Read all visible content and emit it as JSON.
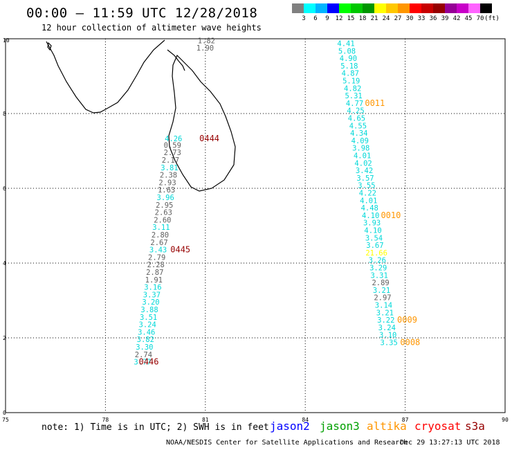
{
  "title": "00:00 – 11:59 UTC 12/28/2018",
  "subtitle": "12 hour collection of altimeter wave heights",
  "scale": {
    "colors": [
      "#808080",
      "#00ffff",
      "#00b4ff",
      "#0000ff",
      "#00ff00",
      "#00c800",
      "#009600",
      "#ffff00",
      "#ffc800",
      "#ff9600",
      "#ff0000",
      "#c80000",
      "#960000",
      "#960096",
      "#c800c8",
      "#ff64ff",
      "#000000"
    ],
    "labels": [
      "3",
      "6",
      "9",
      "12",
      "15",
      "18",
      "21",
      "24",
      "27",
      "30",
      "33",
      "36",
      "39",
      "42",
      "45",
      "70",
      "(ft)"
    ]
  },
  "axes": {
    "x_ticks": [
      "75",
      "78",
      "81",
      "84",
      "87",
      "90"
    ],
    "y_ticks": [
      "0",
      "2",
      "4",
      "6",
      "8",
      "10"
    ]
  },
  "note": "note: 1) Time is in UTC; 2) SWH is in feet",
  "satellites": [
    {
      "name": "jason2",
      "color": "#0000ff"
    },
    {
      "name": "jason3",
      "color": "#00a000"
    },
    {
      "name": "altika",
      "color": "#ff9600"
    },
    {
      "name": "cryosat",
      "color": "#ff0000"
    },
    {
      "name": "s3a",
      "color": "#960000"
    }
  ],
  "footer": "NOAA/NESDIS Center for Satellite Applications and Research",
  "footer_time": "Dec 29 13:27:13 UTC 2018",
  "colors": {
    "cyan": "#00d8d8",
    "gray": "#606060",
    "orange": "#ff9600",
    "yellow": "#ffff00",
    "darkred": "#960000"
  },
  "track_labels": [
    {
      "text": "1.82",
      "lon": 80.77,
      "lat": 9.95,
      "c": "gray"
    },
    {
      "text": "1.90",
      "lon": 80.73,
      "lat": 9.76,
      "c": "gray"
    },
    {
      "text": "4.26",
      "lon": 79.78,
      "lat": 7.33,
      "c": "cyan"
    },
    {
      "text": "0.59",
      "lon": 79.75,
      "lat": 7.16,
      "c": "gray"
    },
    {
      "text": "2.73",
      "lon": 79.75,
      "lat": 6.96,
      "c": "gray"
    },
    {
      "text": "2.17",
      "lon": 79.69,
      "lat": 6.76,
      "c": "gray"
    },
    {
      "text": "3.81",
      "lon": 79.66,
      "lat": 6.56,
      "c": "cyan"
    },
    {
      "text": "2.38",
      "lon": 79.63,
      "lat": 6.36,
      "c": "gray"
    },
    {
      "text": "2.93",
      "lon": 79.6,
      "lat": 6.16,
      "c": "gray"
    },
    {
      "text": "1.63",
      "lon": 79.57,
      "lat": 5.96,
      "c": "gray"
    },
    {
      "text": "3.96",
      "lon": 79.54,
      "lat": 5.76,
      "c": "cyan"
    },
    {
      "text": "2.95",
      "lon": 79.51,
      "lat": 5.56,
      "c": "gray"
    },
    {
      "text": "2.63",
      "lon": 79.48,
      "lat": 5.36,
      "c": "gray"
    },
    {
      "text": "2.60",
      "lon": 79.45,
      "lat": 5.16,
      "c": "gray"
    },
    {
      "text": "3.11",
      "lon": 79.41,
      "lat": 4.96,
      "c": "cyan"
    },
    {
      "text": "2.80",
      "lon": 79.38,
      "lat": 4.76,
      "c": "gray"
    },
    {
      "text": "2.67",
      "lon": 79.35,
      "lat": 4.56,
      "c": "gray"
    },
    {
      "text": "3.43",
      "lon": 79.32,
      "lat": 4.36,
      "c": "cyan"
    },
    {
      "text": "2.79",
      "lon": 79.28,
      "lat": 4.16,
      "c": "gray"
    },
    {
      "text": "2.28",
      "lon": 79.25,
      "lat": 3.96,
      "c": "gray"
    },
    {
      "text": "2.87",
      "lon": 79.22,
      "lat": 3.76,
      "c": "gray"
    },
    {
      "text": "1.91",
      "lon": 79.19,
      "lat": 3.56,
      "c": "gray"
    },
    {
      "text": "3.16",
      "lon": 79.16,
      "lat": 3.36,
      "c": "cyan"
    },
    {
      "text": "3.37",
      "lon": 79.13,
      "lat": 3.16,
      "c": "cyan"
    },
    {
      "text": "3.20",
      "lon": 79.1,
      "lat": 2.96,
      "c": "cyan"
    },
    {
      "text": "3.88",
      "lon": 79.06,
      "lat": 2.76,
      "c": "cyan"
    },
    {
      "text": "3.51",
      "lon": 79.03,
      "lat": 2.56,
      "c": "cyan"
    },
    {
      "text": "3.24",
      "lon": 79.0,
      "lat": 2.36,
      "c": "cyan"
    },
    {
      "text": "3.46",
      "lon": 78.97,
      "lat": 2.16,
      "c": "cyan"
    },
    {
      "text": "3.82",
      "lon": 78.94,
      "lat": 1.96,
      "c": "cyan"
    },
    {
      "text": "3.30",
      "lon": 78.91,
      "lat": 1.76,
      "c": "cyan"
    },
    {
      "text": "2.74",
      "lon": 78.88,
      "lat": 1.56,
      "c": "gray"
    },
    {
      "text": "3.77",
      "lon": 78.85,
      "lat": 1.36,
      "c": "cyan"
    },
    {
      "text": "4.41",
      "lon": 84.96,
      "lat": 9.88,
      "c": "cyan"
    },
    {
      "text": "5.08",
      "lon": 84.99,
      "lat": 9.68,
      "c": "cyan"
    },
    {
      "text": "4.90",
      "lon": 85.03,
      "lat": 9.48,
      "c": "cyan"
    },
    {
      "text": "5.18",
      "lon": 85.06,
      "lat": 9.28,
      "c": "cyan"
    },
    {
      "text": "4.87",
      "lon": 85.09,
      "lat": 9.08,
      "c": "cyan"
    },
    {
      "text": "5.19",
      "lon": 85.12,
      "lat": 8.88,
      "c": "cyan"
    },
    {
      "text": "4.82",
      "lon": 85.16,
      "lat": 8.68,
      "c": "cyan"
    },
    {
      "text": "5.31",
      "lon": 85.19,
      "lat": 8.48,
      "c": "cyan"
    },
    {
      "text": "4.77",
      "lon": 85.22,
      "lat": 8.28,
      "c": "cyan"
    },
    {
      "text": "4.25",
      "lon": 85.25,
      "lat": 8.08,
      "c": "cyan"
    },
    {
      "text": "4.65",
      "lon": 85.28,
      "lat": 7.88,
      "c": "cyan"
    },
    {
      "text": "4.55",
      "lon": 85.32,
      "lat": 7.68,
      "c": "cyan"
    },
    {
      "text": "4.34",
      "lon": 85.35,
      "lat": 7.48,
      "c": "cyan"
    },
    {
      "text": "4.09",
      "lon": 85.38,
      "lat": 7.28,
      "c": "cyan"
    },
    {
      "text": "3.98",
      "lon": 85.41,
      "lat": 7.08,
      "c": "cyan"
    },
    {
      "text": "4.01",
      "lon": 85.45,
      "lat": 6.88,
      "c": "cyan"
    },
    {
      "text": "4.02",
      "lon": 85.48,
      "lat": 6.68,
      "c": "cyan"
    },
    {
      "text": "3.42",
      "lon": 85.51,
      "lat": 6.48,
      "c": "cyan"
    },
    {
      "text": "3.57",
      "lon": 85.54,
      "lat": 6.28,
      "c": "cyan"
    },
    {
      "text": "3.55",
      "lon": 85.58,
      "lat": 6.08,
      "c": "cyan"
    },
    {
      "text": "4.22",
      "lon": 85.61,
      "lat": 5.88,
      "c": "cyan"
    },
    {
      "text": "4.01",
      "lon": 85.64,
      "lat": 5.68,
      "c": "cyan"
    },
    {
      "text": "4.48",
      "lon": 85.67,
      "lat": 5.48,
      "c": "cyan"
    },
    {
      "text": "4.10",
      "lon": 85.7,
      "lat": 5.28,
      "c": "cyan"
    },
    {
      "text": "3.93",
      "lon": 85.74,
      "lat": 5.08,
      "c": "cyan"
    },
    {
      "text": "4.10",
      "lon": 85.77,
      "lat": 4.88,
      "c": "cyan"
    },
    {
      "text": "3.54",
      "lon": 85.8,
      "lat": 4.68,
      "c": "cyan"
    },
    {
      "text": "3.67",
      "lon": 85.83,
      "lat": 4.48,
      "c": "cyan"
    },
    {
      "text": "21.66",
      "lon": 85.81,
      "lat": 4.28,
      "c": "yellow"
    },
    {
      "text": "3.26",
      "lon": 85.9,
      "lat": 4.08,
      "c": "cyan"
    },
    {
      "text": "3.29",
      "lon": 85.93,
      "lat": 3.88,
      "c": "cyan"
    },
    {
      "text": "3.31",
      "lon": 85.96,
      "lat": 3.68,
      "c": "cyan"
    },
    {
      "text": "2.89",
      "lon": 86.0,
      "lat": 3.48,
      "c": "gray"
    },
    {
      "text": "3.21",
      "lon": 86.03,
      "lat": 3.28,
      "c": "cyan"
    },
    {
      "text": "2.97",
      "lon": 86.06,
      "lat": 3.08,
      "c": "gray"
    },
    {
      "text": "3.14",
      "lon": 86.09,
      "lat": 2.88,
      "c": "cyan"
    },
    {
      "text": "3.21",
      "lon": 86.13,
      "lat": 2.68,
      "c": "cyan"
    },
    {
      "text": "3.22",
      "lon": 86.16,
      "lat": 2.48,
      "c": "cyan"
    },
    {
      "text": "3.24",
      "lon": 86.19,
      "lat": 2.28,
      "c": "cyan"
    },
    {
      "text": "3.10",
      "lon": 86.22,
      "lat": 2.08,
      "c": "cyan"
    },
    {
      "text": "3.35",
      "lon": 86.25,
      "lat": 1.88,
      "c": "cyan"
    }
  ],
  "time_labels": [
    {
      "text": "0444",
      "lon": 80.82,
      "lat": 7.33,
      "c": "darkred"
    },
    {
      "text": "0445",
      "lon": 79.95,
      "lat": 4.36,
      "c": "darkred"
    },
    {
      "text": "0446",
      "lon": 79.0,
      "lat": 1.36,
      "c": "darkred"
    },
    {
      "text": "0011",
      "lon": 85.79,
      "lat": 8.28,
      "c": "orange"
    },
    {
      "text": "0010",
      "lon": 86.27,
      "lat": 5.28,
      "c": "orange"
    },
    {
      "text": "0009",
      "lon": 86.76,
      "lat": 2.48,
      "c": "orange"
    },
    {
      "text": "0008",
      "lon": 86.85,
      "lat": 1.88,
      "c": "orange"
    }
  ]
}
